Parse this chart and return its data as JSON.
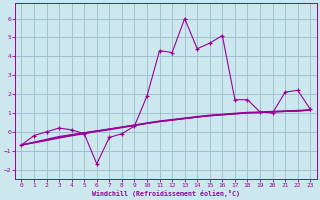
{
  "xlabel": "Windchill (Refroidissement éolien,°C)",
  "xlim": [
    -0.5,
    23.5
  ],
  "ylim": [
    -2.5,
    6.8
  ],
  "xticks": [
    0,
    1,
    2,
    3,
    4,
    5,
    6,
    7,
    8,
    9,
    10,
    11,
    12,
    13,
    14,
    15,
    16,
    17,
    18,
    19,
    20,
    21,
    22,
    23
  ],
  "yticks": [
    -2,
    -1,
    0,
    1,
    2,
    3,
    4,
    5,
    6
  ],
  "bg_color": "#cce8ee",
  "line_color": "#990099",
  "grid_color": "#99bbcc",
  "series_main": [
    -0.7,
    -0.2,
    0.0,
    0.2,
    0.1,
    -0.1,
    -1.7,
    -0.3,
    -0.1,
    0.3,
    1.9,
    4.3,
    4.2,
    6.0,
    4.4,
    4.7,
    5.1,
    1.7,
    1.7,
    1.05,
    1.0,
    2.1,
    2.2,
    1.2
  ],
  "smooth_a": [
    -0.7,
    -0.55,
    -0.4,
    -0.25,
    -0.15,
    -0.05,
    0.05,
    0.15,
    0.25,
    0.35,
    0.45,
    0.55,
    0.62,
    0.7,
    0.78,
    0.85,
    0.9,
    0.95,
    1.0,
    1.02,
    1.05,
    1.08,
    1.1,
    1.15
  ],
  "smooth_b": [
    -0.7,
    -0.57,
    -0.44,
    -0.3,
    -0.18,
    -0.07,
    0.04,
    0.14,
    0.25,
    0.36,
    0.47,
    0.57,
    0.65,
    0.73,
    0.81,
    0.88,
    0.93,
    0.98,
    1.03,
    1.05,
    1.08,
    1.11,
    1.13,
    1.17
  ],
  "smooth_c": [
    -0.7,
    -0.58,
    -0.46,
    -0.33,
    -0.21,
    -0.1,
    0.01,
    0.11,
    0.22,
    0.33,
    0.44,
    0.54,
    0.62,
    0.7,
    0.78,
    0.85,
    0.9,
    0.95,
    1.0,
    1.02,
    1.05,
    1.08,
    1.1,
    1.15
  ]
}
